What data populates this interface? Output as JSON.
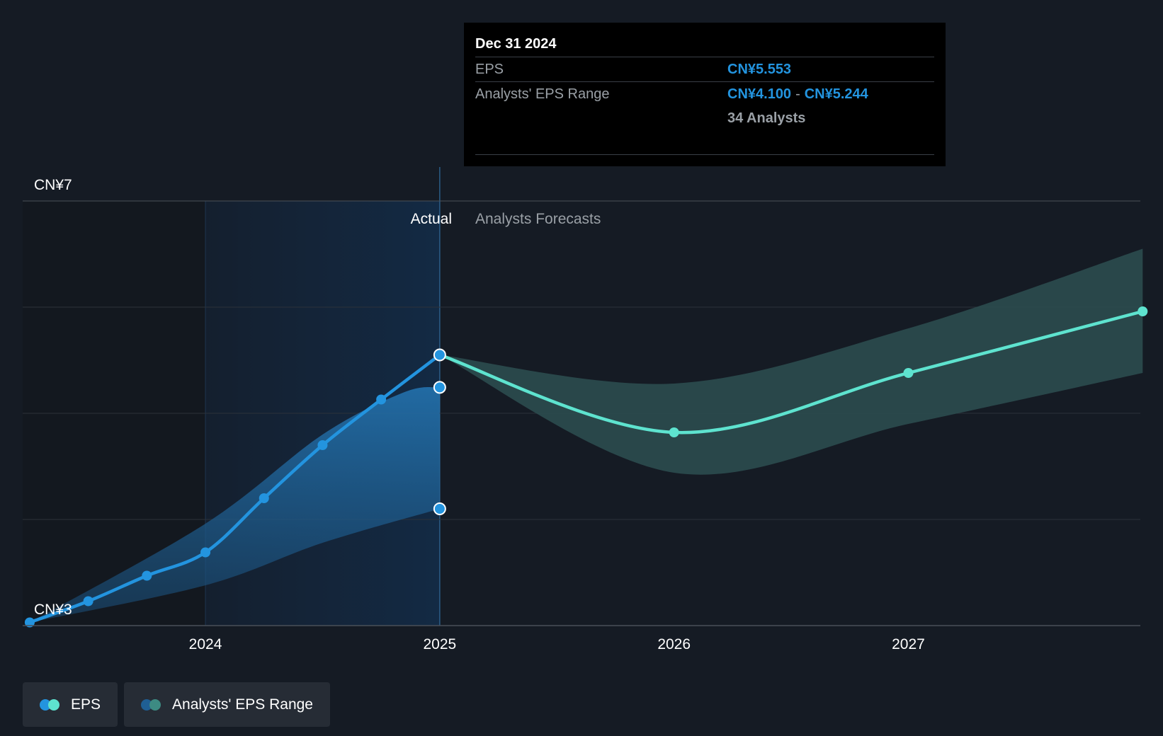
{
  "tooltip": {
    "date": "Dec 31 2024",
    "eps_label": "EPS",
    "eps_value": "CN¥5.553",
    "range_label": "Analysts' EPS Range",
    "range_low": "CN¥4.100",
    "range_sep": "-",
    "range_high": "CN¥5.244",
    "analysts": "34 Analysts"
  },
  "labels": {
    "actual": "Actual",
    "forecast": "Analysts Forecasts"
  },
  "legend": {
    "eps": "EPS",
    "range": "Analysts' EPS Range"
  },
  "colors": {
    "actual_line": "#2394df",
    "forecast_line": "#5ee3cf",
    "forecast_band": "#2b4c4f",
    "actual_band": "#1f5f94"
  },
  "chart_data": {
    "type": "line",
    "ylim": [
      3,
      7
    ],
    "yticks": [
      {
        "value": 3,
        "label": "CN¥3"
      },
      {
        "value": 7,
        "label": "CN¥7"
      }
    ],
    "xlim": [
      2023.22,
      2027.99
    ],
    "xticks": [
      {
        "value": 2024,
        "label": "2024"
      },
      {
        "value": 2025,
        "label": "2025"
      },
      {
        "value": 2026,
        "label": "2026"
      },
      {
        "value": 2027,
        "label": "2027"
      }
    ],
    "gridlines": [
      4,
      5,
      6,
      7
    ],
    "divider_x": 2025,
    "highlight_start_x": 2024,
    "series": [
      {
        "name": "EPS",
        "points": [
          {
            "x": 2023.25,
            "y": 3.03
          },
          {
            "x": 2023.5,
            "y": 3.23
          },
          {
            "x": 2023.75,
            "y": 3.47
          },
          {
            "x": 2024.0,
            "y": 3.69
          },
          {
            "x": 2024.25,
            "y": 4.2
          },
          {
            "x": 2024.5,
            "y": 4.7
          },
          {
            "x": 2024.75,
            "y": 5.13
          },
          {
            "x": 2025.0,
            "y": 5.55
          }
        ]
      },
      {
        "name": "EPS forecast",
        "points": [
          {
            "x": 2025.0,
            "y": 5.55
          },
          {
            "x": 2026.0,
            "y": 4.82
          },
          {
            "x": 2027.0,
            "y": 5.38
          },
          {
            "x": 2028.0,
            "y": 5.96
          }
        ]
      }
    ],
    "actual_range": {
      "upper": [
        {
          "x": 2023.25,
          "y": 3.03
        },
        {
          "x": 2024.0,
          "y": 3.96
        },
        {
          "x": 2024.5,
          "y": 4.8
        },
        {
          "x": 2024.85,
          "y": 5.2
        },
        {
          "x": 2025.0,
          "y": 5.244
        }
      ],
      "lower": [
        {
          "x": 2023.25,
          "y": 3.03
        },
        {
          "x": 2024.0,
          "y": 3.38
        },
        {
          "x": 2024.5,
          "y": 3.78
        },
        {
          "x": 2025.0,
          "y": 4.1
        }
      ],
      "markers": [
        5.244,
        4.1
      ]
    },
    "forecast_range": {
      "upper": [
        {
          "x": 2025.0,
          "y": 5.55
        },
        {
          "x": 2026.0,
          "y": 5.28
        },
        {
          "x": 2027.0,
          "y": 5.8
        },
        {
          "x": 2028.0,
          "y": 6.55
        }
      ],
      "lower": [
        {
          "x": 2025.0,
          "y": 5.55
        },
        {
          "x": 2026.0,
          "y": 4.44
        },
        {
          "x": 2027.0,
          "y": 4.9
        },
        {
          "x": 2028.0,
          "y": 5.38
        }
      ]
    }
  }
}
